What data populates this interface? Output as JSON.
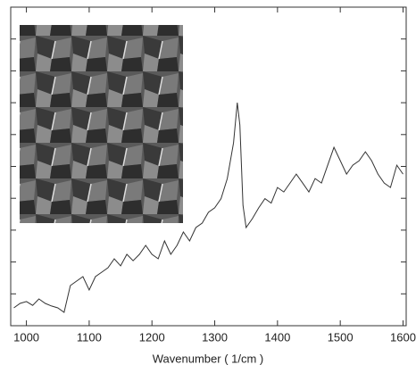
{
  "chart_data": {
    "type": "line",
    "x_label": "Wavenumber ( 1/cm )",
    "x": [
      980,
      990,
      1000,
      1010,
      1020,
      1030,
      1040,
      1050,
      1060,
      1070,
      1080,
      1090,
      1100,
      1110,
      1120,
      1130,
      1140,
      1150,
      1160,
      1170,
      1180,
      1190,
      1200,
      1210,
      1220,
      1230,
      1240,
      1250,
      1260,
      1270,
      1280,
      1290,
      1300,
      1310,
      1320,
      1330,
      1336,
      1340,
      1345,
      1350,
      1360,
      1370,
      1380,
      1390,
      1400,
      1410,
      1420,
      1430,
      1440,
      1450,
      1460,
      1470,
      1480,
      1490,
      1500,
      1510,
      1520,
      1530,
      1540,
      1550,
      1560,
      1570,
      1580,
      1590,
      1600
    ],
    "values": [
      5.6,
      7,
      7.6,
      6.4,
      8.4,
      7,
      6.2,
      5.6,
      4.2,
      12.6,
      14,
      15.4,
      11.2,
      15.4,
      16.8,
      18.2,
      21,
      18.8,
      22.4,
      20.4,
      22.4,
      25.2,
      22.4,
      21,
      26.6,
      22.4,
      25.2,
      29.4,
      26.6,
      30.8,
      32.2,
      35.6,
      37,
      39.9,
      46.2,
      57.4,
      70,
      63,
      37.8,
      30.8,
      33.6,
      37,
      39.9,
      38.5,
      43.4,
      42,
      44.8,
      47.6,
      44.8,
      42,
      46.2,
      44.8,
      50.4,
      56,
      51.8,
      47.6,
      50.4,
      51.8,
      54.6,
      51.8,
      47.6,
      44.8,
      43.4,
      50.4,
      47.6
    ],
    "color": "#333333",
    "xlim": [
      975,
      1605
    ],
    "xticks": [
      1000,
      1100,
      1200,
      1300,
      1400,
      1500,
      1600
    ],
    "ylim": [
      0,
      100
    ],
    "yticks": [
      0,
      10,
      20,
      30,
      40,
      50,
      60,
      70,
      80,
      90,
      100
    ]
  }
}
